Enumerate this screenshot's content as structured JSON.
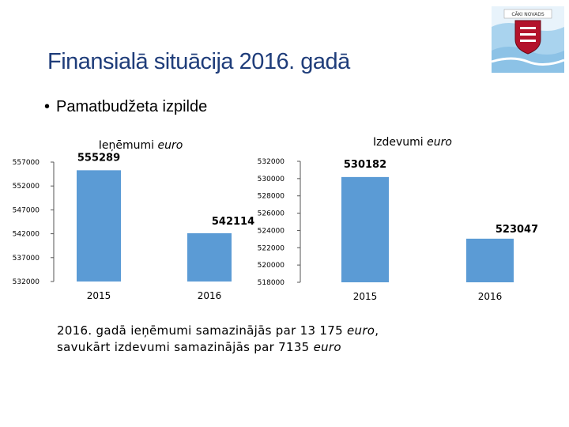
{
  "title": "Finansialā situācija 2016. gadā",
  "bullet": "Pamatbudžeta izpilde",
  "logo_text": "CĀKI NOVADS",
  "footnote": {
    "line1_a": "2016. gadā ieņēmumi samazinājās par 13 175 ",
    "line1_b": "euro",
    "line1_c": ",",
    "line2_a": "savukārt izdevumi samazinājās par 7135 ",
    "line2_b": "euro"
  },
  "colors": {
    "bar": "#5b9bd5",
    "title": "#1f3d7a"
  },
  "chart_data": [
    {
      "type": "bar",
      "title_main": "Ieņēmumi ",
      "title_unit": "euro",
      "categories": [
        "2015",
        "2016"
      ],
      "values": [
        555289,
        542114
      ],
      "ylim": [
        532000,
        557000
      ],
      "yticks": [
        "557000",
        "552000",
        "547000",
        "542000",
        "537000",
        "532000"
      ],
      "grid": false
    },
    {
      "type": "bar",
      "title_main": "Izdevumi ",
      "title_unit": "euro",
      "categories": [
        "2015",
        "2016"
      ],
      "values": [
        530182,
        523047
      ],
      "ylim": [
        518000,
        532000
      ],
      "yticks": [
        "532000",
        "530000",
        "528000",
        "526000",
        "524000",
        "522000",
        "520000",
        "518000"
      ],
      "grid": false
    }
  ]
}
